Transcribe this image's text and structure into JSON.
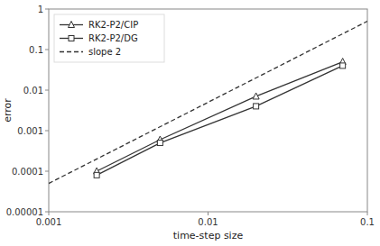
{
  "chart_data": {
    "type": "line",
    "log": true,
    "xlabel": "time-step size",
    "ylabel": "error",
    "xlim": [
      0.001,
      0.1
    ],
    "ylim": [
      1e-05,
      1
    ],
    "xticks": [
      0.001,
      0.01,
      0.1
    ],
    "yticks": [
      1e-05,
      0.0001,
      0.001,
      0.01,
      0.1,
      1
    ],
    "grid": false,
    "legend": "upper left",
    "series": [
      {
        "name": "RK2-P2/CIP",
        "color": "#333333",
        "marker": "triangle",
        "line_style": "solid",
        "x": [
          0.002,
          0.005,
          0.02,
          0.07
        ],
        "values": [
          0.0001,
          0.0006,
          0.007,
          0.05
        ]
      },
      {
        "name": "RK2-P2/DG",
        "color": "#333333",
        "marker": "square",
        "line_style": "solid",
        "x": [
          0.002,
          0.005,
          0.02,
          0.07
        ],
        "values": [
          8e-05,
          0.0005,
          0.004,
          0.04
        ]
      },
      {
        "name": "slope 2",
        "color": "#333333",
        "marker": "none",
        "line_style": "dashed",
        "x": [
          0.001,
          0.1
        ],
        "values": [
          5e-05,
          0.5
        ]
      }
    ]
  }
}
